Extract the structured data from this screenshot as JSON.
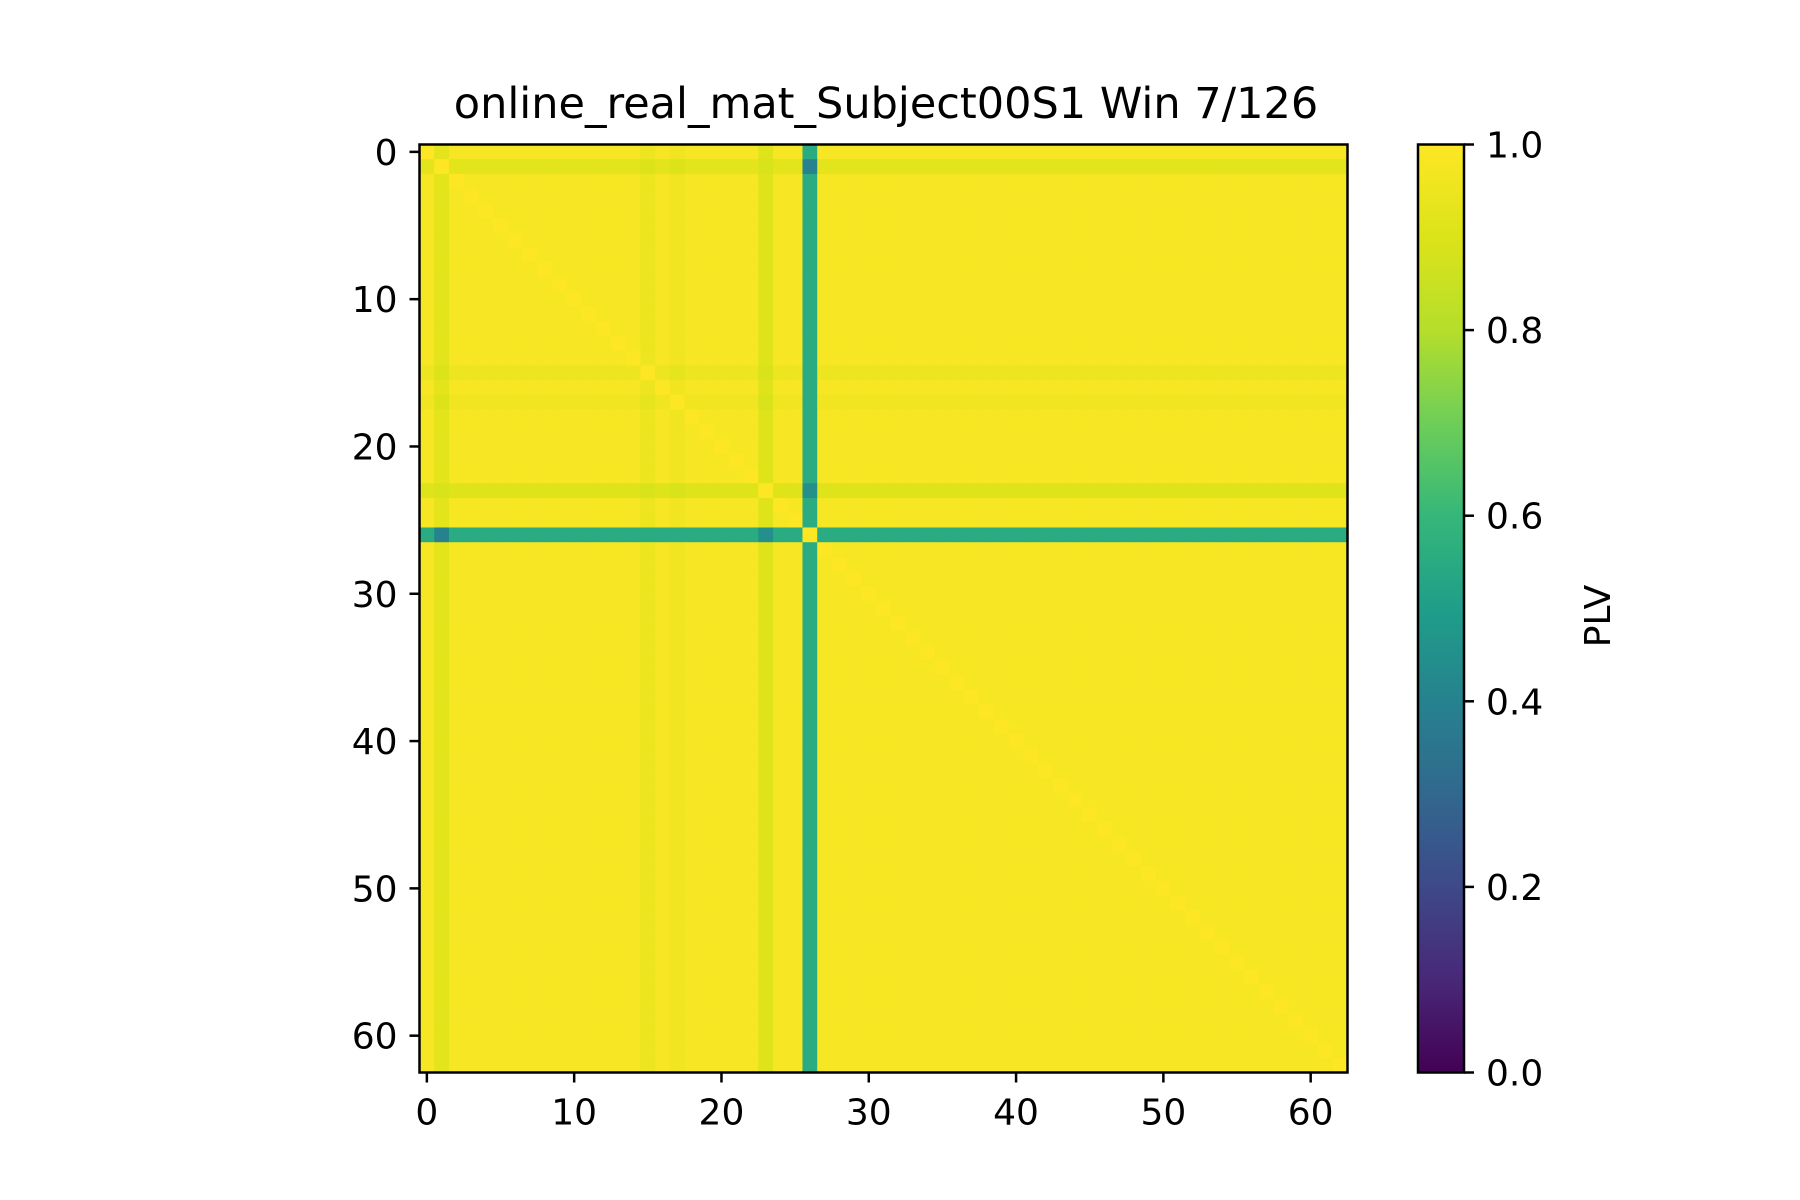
{
  "chart_data": {
    "type": "heatmap",
    "title": "online_real_mat_Subject00S1 Win 7/126",
    "xlabel": "",
    "ylabel": "",
    "n_rows": 63,
    "n_cols": 63,
    "x_ticks": [
      "0",
      "10",
      "20",
      "30",
      "40",
      "50",
      "60"
    ],
    "y_ticks": [
      "0",
      "10",
      "20",
      "30",
      "40",
      "50",
      "60"
    ],
    "y_axis_inverted": true,
    "colormap": "viridis",
    "colorbar": {
      "label": "PLV",
      "range": [
        0.0,
        1.0
      ],
      "ticks": [
        "0.0",
        "0.2",
        "0.4",
        "0.6",
        "0.8",
        "1.0"
      ]
    },
    "grid": false,
    "matrix_summary": {
      "diagonal_value": 1.0,
      "background_value": 0.98,
      "faint_rows_cols": [
        {
          "index": 1,
          "value": 0.92
        },
        {
          "index": 15,
          "value": 0.95
        },
        {
          "index": 17,
          "value": 0.96
        },
        {
          "index": 23,
          "value": 0.91
        }
      ],
      "low_row_col": {
        "index": 26,
        "value": 0.55
      },
      "lowest_pairs": [
        {
          "row": 26,
          "col": 1,
          "value": 0.4
        },
        {
          "row": 26,
          "col": 23,
          "value": 0.45
        }
      ]
    }
  }
}
